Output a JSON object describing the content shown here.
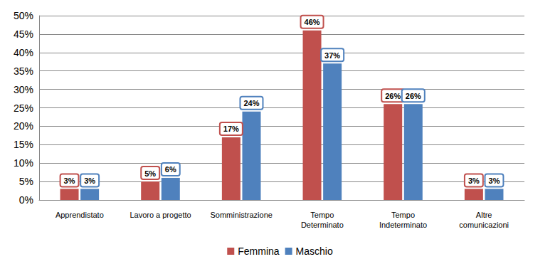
{
  "chart_data": {
    "type": "bar",
    "categories": [
      "Apprendistato",
      "Lavoro a progetto",
      "Somministrazione",
      "Tempo\nDeterminato",
      "Tempo\nIndeterminato",
      "Altre\ncomunicazioni"
    ],
    "series": [
      {
        "name": "Femmina",
        "color": "#c0504d",
        "values": [
          3,
          5,
          17,
          46,
          26,
          3
        ],
        "value_labels": [
          "3%",
          "5%",
          "17%",
          "46%",
          "26%",
          "3%"
        ]
      },
      {
        "name": "Maschio",
        "color": "#4f81bd",
        "values": [
          3,
          6,
          24,
          37,
          26,
          3
        ],
        "value_labels": [
          "3%",
          "6%",
          "24%",
          "37%",
          "26%",
          "3%"
        ]
      }
    ],
    "ylim": [
      0,
      50
    ],
    "yticks": [
      {
        "value": 0,
        "label": "0%"
      },
      {
        "value": 5,
        "label": "5%"
      },
      {
        "value": 10,
        "label": "10%"
      },
      {
        "value": 15,
        "label": "15%"
      },
      {
        "value": 20,
        "label": "20%"
      },
      {
        "value": 25,
        "label": "25%"
      },
      {
        "value": 30,
        "label": "30%"
      },
      {
        "value": 35,
        "label": "35%"
      },
      {
        "value": 40,
        "label": "40%"
      },
      {
        "value": 45,
        "label": "45%"
      },
      {
        "value": 50,
        "label": "50%"
      }
    ],
    "grid": true,
    "legend": "bottom",
    "data_labels": true
  }
}
